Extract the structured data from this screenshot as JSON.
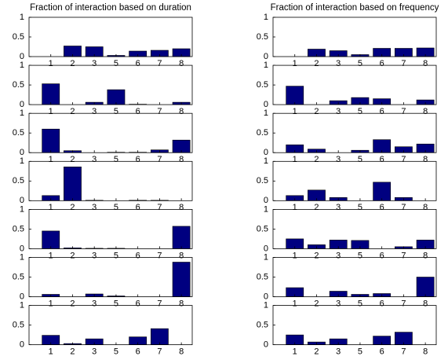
{
  "chart_data": [
    {
      "type": "bar",
      "title": "Fraction of interaction based on duration",
      "categories": [
        "1",
        "2",
        "3",
        "5",
        "6",
        "7",
        "8"
      ],
      "values": [
        0,
        0.27,
        0.25,
        0.03,
        0.14,
        0.16,
        0.2
      ],
      "color": "#000080",
      "ylim": [
        0,
        1
      ],
      "yticks": [
        0,
        0.5,
        1
      ]
    },
    {
      "type": "bar",
      "categories": [
        "1",
        "2",
        "3",
        "5",
        "6",
        "7",
        "8"
      ],
      "values": [
        0.53,
        0,
        0.06,
        0.38,
        0.01,
        0,
        0.06
      ],
      "color": "#000080",
      "ylim": [
        0,
        1
      ],
      "yticks": [
        0,
        0.5,
        1
      ]
    },
    {
      "type": "bar",
      "categories": [
        "1",
        "2",
        "3",
        "5",
        "6",
        "7",
        "8"
      ],
      "values": [
        0.6,
        0.05,
        0,
        0.01,
        0.01,
        0.07,
        0.32
      ],
      "color": "#000080",
      "ylim": [
        0,
        1
      ],
      "yticks": [
        0,
        0.5,
        1
      ]
    },
    {
      "type": "bar",
      "categories": [
        "1",
        "2",
        "3",
        "5",
        "6",
        "7",
        "8"
      ],
      "values": [
        0.13,
        0.86,
        0.01,
        0,
        0.01,
        0.01,
        0
      ],
      "color": "#000080",
      "ylim": [
        0,
        1
      ],
      "yticks": [
        0,
        0.5,
        1
      ]
    },
    {
      "type": "bar",
      "categories": [
        "1",
        "2",
        "3",
        "5",
        "6",
        "7",
        "8"
      ],
      "values": [
        0.45,
        0.02,
        0.01,
        0.01,
        0,
        0,
        0.57
      ],
      "color": "#000080",
      "ylim": [
        0,
        1
      ],
      "yticks": [
        0,
        0.5,
        1
      ]
    },
    {
      "type": "bar",
      "categories": [
        "1",
        "2",
        "3",
        "5",
        "6",
        "7",
        "8"
      ],
      "values": [
        0.06,
        0,
        0.07,
        0.02,
        0,
        0,
        0.88
      ],
      "color": "#000080",
      "ylim": [
        0,
        1
      ],
      "yticks": [
        0,
        0.5,
        1
      ]
    },
    {
      "type": "bar",
      "categories": [
        "1",
        "2",
        "3",
        "5",
        "6",
        "7",
        "8"
      ],
      "values": [
        0.24,
        0.03,
        0.15,
        0,
        0.2,
        0.41,
        0
      ],
      "color": "#000080",
      "ylim": [
        0,
        1
      ],
      "yticks": [
        0,
        0.5,
        1
      ]
    },
    {
      "type": "bar",
      "title": "Fraction of interaction based on frequency",
      "categories": [
        "1",
        "2",
        "3",
        "5",
        "6",
        "7",
        "8"
      ],
      "values": [
        0,
        0.19,
        0.15,
        0.05,
        0.21,
        0.21,
        0.22
      ],
      "color": "#000080",
      "ylim": [
        0,
        1
      ],
      "yticks": [
        0,
        0.5,
        1
      ]
    },
    {
      "type": "bar",
      "categories": [
        "1",
        "2",
        "3",
        "5",
        "6",
        "7",
        "8"
      ],
      "values": [
        0.47,
        0,
        0.1,
        0.18,
        0.15,
        0,
        0.12
      ],
      "color": "#000080",
      "ylim": [
        0,
        1
      ],
      "yticks": [
        0,
        0.5,
        1
      ]
    },
    {
      "type": "bar",
      "categories": [
        "1",
        "2",
        "3",
        "5",
        "6",
        "7",
        "8"
      ],
      "values": [
        0.2,
        0.09,
        0,
        0.06,
        0.33,
        0.15,
        0.22
      ],
      "color": "#000080",
      "ylim": [
        0,
        1
      ],
      "yticks": [
        0,
        0.5,
        1
      ]
    },
    {
      "type": "bar",
      "categories": [
        "1",
        "2",
        "3",
        "5",
        "6",
        "7",
        "8"
      ],
      "values": [
        0.13,
        0.27,
        0.08,
        0,
        0.47,
        0.08,
        0
      ],
      "color": "#000080",
      "ylim": [
        0,
        1
      ],
      "yticks": [
        0,
        0.5,
        1
      ]
    },
    {
      "type": "bar",
      "categories": [
        "1",
        "2",
        "3",
        "5",
        "6",
        "7",
        "8"
      ],
      "values": [
        0.25,
        0.1,
        0.22,
        0.21,
        0,
        0.05,
        0.22
      ],
      "color": "#000080",
      "ylim": [
        0,
        1
      ],
      "yticks": [
        0,
        0.5,
        1
      ]
    },
    {
      "type": "bar",
      "categories": [
        "1",
        "2",
        "3",
        "5",
        "6",
        "7",
        "8"
      ],
      "values": [
        0.23,
        0,
        0.14,
        0.06,
        0.08,
        0,
        0.5
      ],
      "color": "#000080",
      "ylim": [
        0,
        1
      ],
      "yticks": [
        0,
        0.5,
        1
      ]
    },
    {
      "type": "bar",
      "categories": [
        "1",
        "2",
        "3",
        "5",
        "6",
        "7",
        "8"
      ],
      "values": [
        0.25,
        0.07,
        0.15,
        0,
        0.22,
        0.32,
        0
      ],
      "color": "#000080",
      "ylim": [
        0,
        1
      ],
      "yticks": [
        0,
        0.5,
        1
      ]
    }
  ]
}
